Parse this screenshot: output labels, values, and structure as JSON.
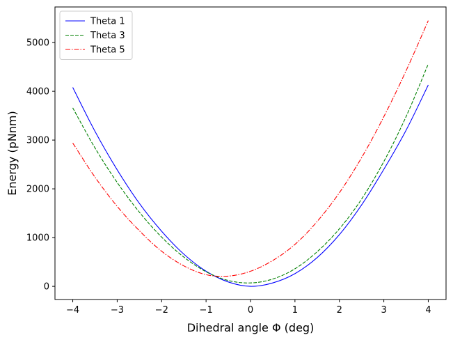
{
  "chart_data": {
    "type": "line",
    "title": "",
    "xlabel": "Dihedral angle Φ (deg)",
    "ylabel": "Energy (pNnm)",
    "xlim": [
      -4.4,
      4.4
    ],
    "ylim": [
      -270,
      5730
    ],
    "x_ticks": [
      -4,
      -3,
      -2,
      -1,
      0,
      1,
      2,
      3,
      4
    ],
    "x_tick_labels": [
      "−4",
      "−3",
      "−2",
      "−1",
      "0",
      "1",
      "2",
      "3",
      "4"
    ],
    "y_ticks": [
      0,
      1000,
      2000,
      3000,
      4000,
      5000
    ],
    "y_tick_labels": [
      "0",
      "1000",
      "2000",
      "3000",
      "4000",
      "5000"
    ],
    "grid": false,
    "legend_position": "top-left",
    "series": [
      {
        "name": "Theta 1",
        "color": "#0000ff",
        "style": "solid",
        "x": [
          -4,
          -3.5,
          -3,
          -2.5,
          -2,
          -1.5,
          -1,
          -0.5,
          0,
          0.5,
          1,
          1.5,
          2,
          2.5,
          3,
          3.5,
          4
        ],
        "y": [
          4080,
          3180,
          2390,
          1700,
          1130,
          660,
          310,
          90,
          0,
          70,
          260,
          590,
          1060,
          1670,
          2400,
          3200,
          4130
        ]
      },
      {
        "name": "Theta 3",
        "color": "#008000",
        "style": "dashed",
        "x": [
          -4,
          -3.5,
          -3,
          -2.5,
          -2,
          -1.5,
          -1,
          -0.5,
          0,
          0.5,
          1,
          1.5,
          2,
          2.5,
          3,
          3.5,
          4
        ],
        "y": [
          3660,
          2840,
          2130,
          1520,
          1010,
          600,
          300,
          120,
          70,
          150,
          360,
          710,
          1180,
          1790,
          2560,
          3480,
          4560
        ]
      },
      {
        "name": "Theta 5",
        "color": "#ff0000",
        "style": "dashdot",
        "x": [
          -4,
          -3.5,
          -3,
          -2.5,
          -2,
          -1.5,
          -1,
          -0.5,
          0,
          0.5,
          1,
          1.5,
          2,
          2.5,
          3,
          3.5,
          4
        ],
        "y": [
          2940,
          2240,
          1640,
          1140,
          720,
          420,
          240,
          210,
          310,
          530,
          860,
          1330,
          1920,
          2640,
          3480,
          4420,
          5450
        ]
      }
    ]
  }
}
